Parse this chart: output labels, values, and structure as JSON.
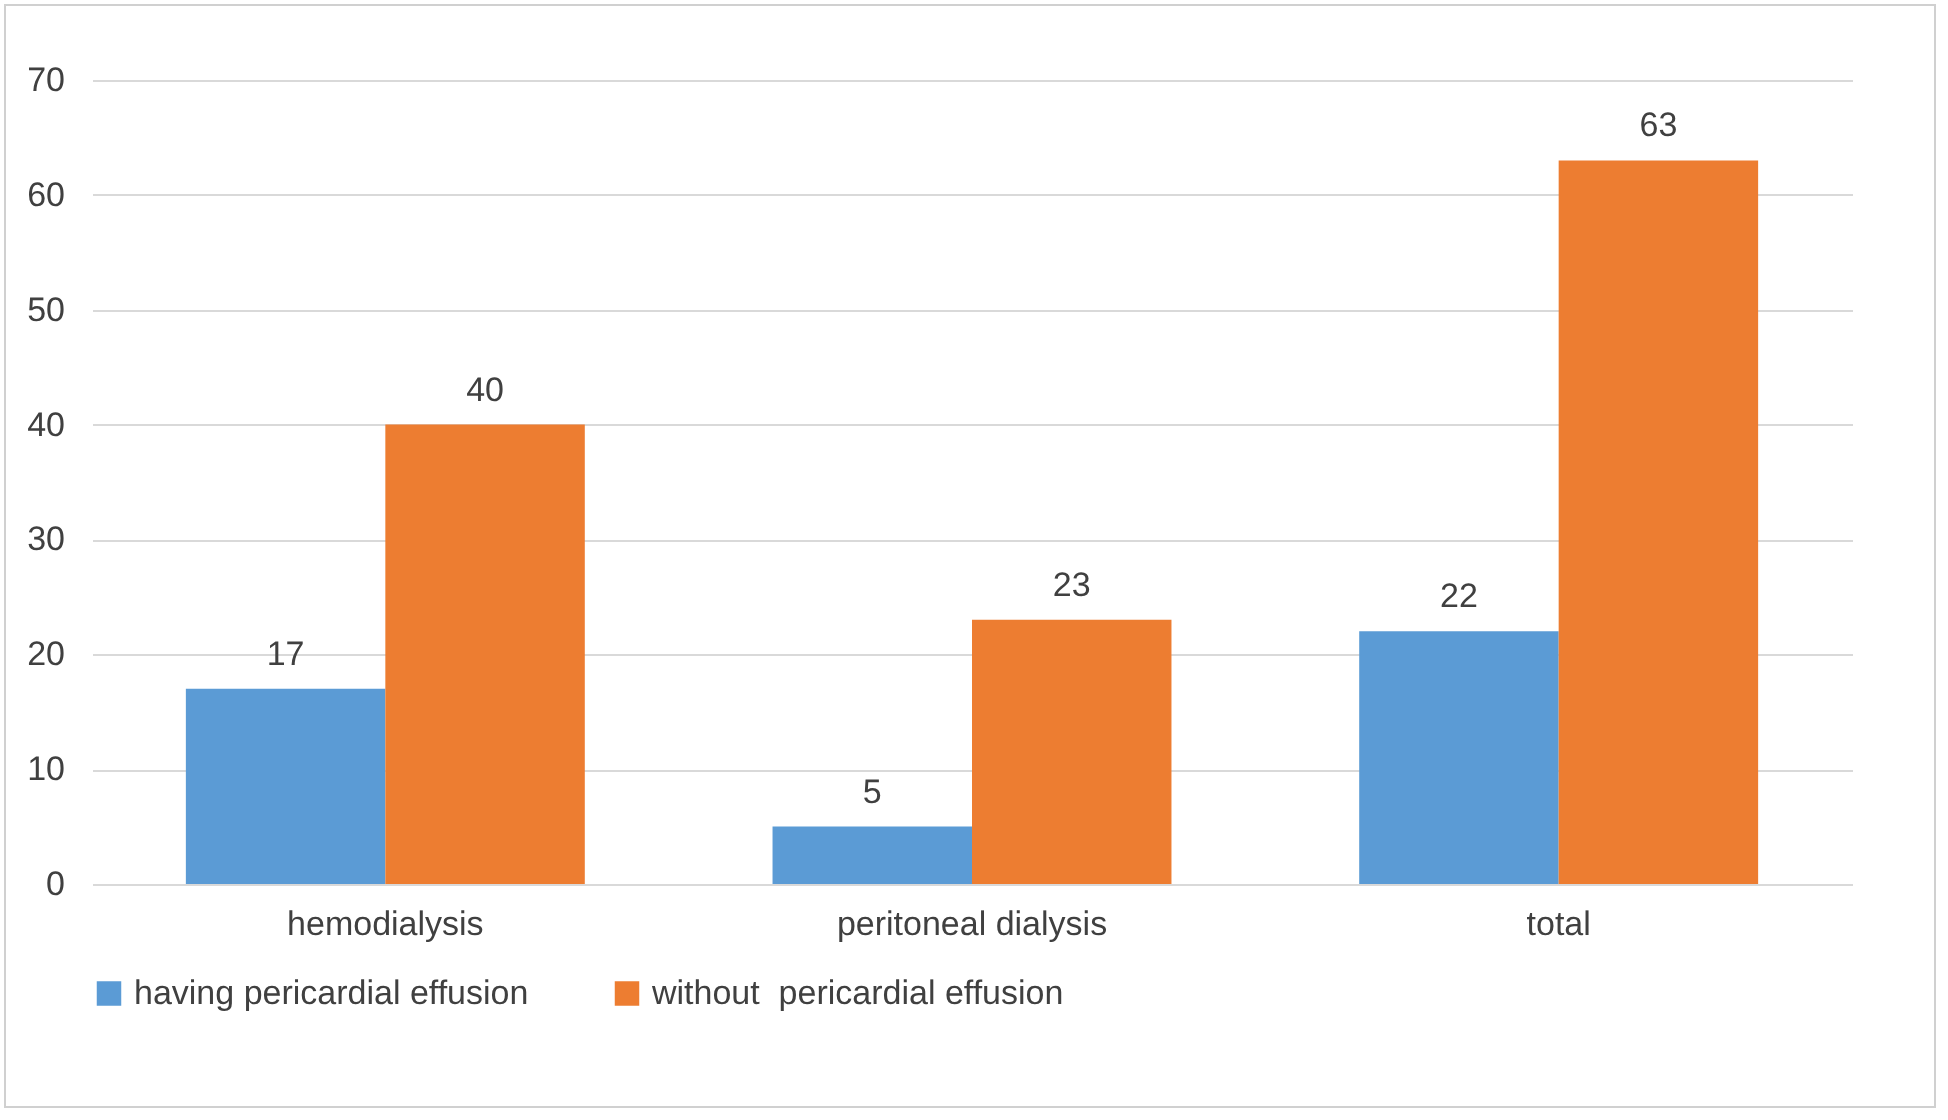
{
  "chart_data": {
    "type": "bar",
    "categories": [
      "hemodialysis",
      "peritoneal dialysis",
      "total"
    ],
    "series": [
      {
        "name": "having pericardial effusion",
        "color": "#5b9bd5",
        "values": [
          17,
          5,
          22
        ]
      },
      {
        "name": "without  pericardial effusion",
        "color": "#ed7d31",
        "values": [
          40,
          23,
          63
        ]
      }
    ],
    "ylim": [
      0,
      70
    ],
    "yticks": [
      0,
      10,
      20,
      30,
      40,
      50,
      60,
      70
    ],
    "grid": "y",
    "legend": "bottom",
    "data_labels": true
  }
}
